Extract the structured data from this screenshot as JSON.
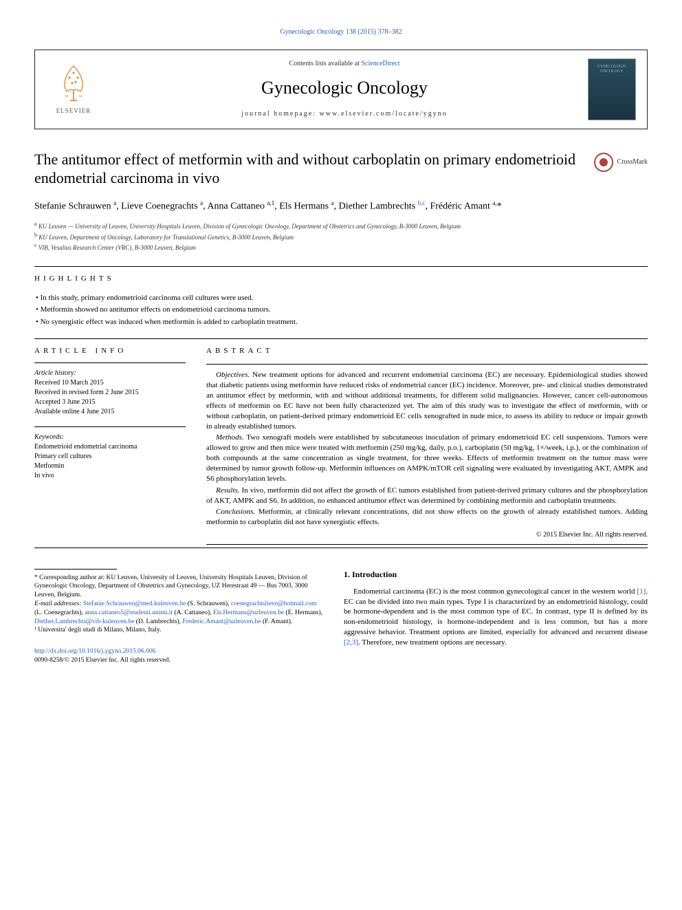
{
  "top_citation": "Gynecologic Oncology 138 (2015) 378–382",
  "header": {
    "contents_prefix": "Contents lists available at ",
    "contents_link": "ScienceDirect",
    "journal_title": "Gynecologic Oncology",
    "homepage_label": "journal homepage: www.elsevier.com/locate/ygyno",
    "publisher_name": "ELSEVIER",
    "cover_line1": "GYNECOLOGIC",
    "cover_line2": "ONCOLOGY"
  },
  "article": {
    "title": "The antitumor effect of metformin with and without carboplatin on primary endometrioid endometrial carcinoma in vivo",
    "crossmark": "CrossMark",
    "authors_html": "Stefanie Schrauwen <sup>a</sup>, Lieve Coenegrachts <sup>a</sup>, Anna Cattaneo <sup>a,1</sup>, Els Hermans <sup>a</sup>, Diether Lambrechts <sup><a>b,c</a></sup>, Frédéric Amant <sup>a,</sup>*",
    "affiliations": [
      {
        "sup": "a",
        "text": "KU Leuven — University of Leuven, University Hospitals Leuven, Division of Gynecologic Oncology, Department of Obstetrics and Gynecology, B-3000 Leuven, Belgium"
      },
      {
        "sup": "b",
        "text": "KU Leuven, Department of Oncology, Laboratory for Translational Genetics, B-3000 Leuven, Belgium"
      },
      {
        "sup": "c",
        "text": "VIB, Vesalius Research Center (VRC), B-3000 Leuven, Belgium"
      }
    ]
  },
  "highlights": {
    "label": "HIGHLIGHTS",
    "items": [
      "In this study, primary endometrioid carcinoma cell cultures were used.",
      "Metformin showed no antitumor effects on endometrioid carcinoma tumors.",
      "No synergistic effect was induced when metformin is added to carboplatin treatment."
    ]
  },
  "article_info": {
    "label": "ARTICLE INFO",
    "history_heading": "Article history:",
    "history": [
      "Received 10 March 2015",
      "Received in revised form 2 June 2015",
      "Accepted 3 June 2015",
      "Available online 4 June 2015"
    ],
    "keywords_heading": "Keywords:",
    "keywords": [
      "Endometrioid endometrial carcinoma",
      "Primary cell cultures",
      "Metformin",
      "In vivo"
    ]
  },
  "abstract": {
    "label": "ABSTRACT",
    "paragraphs": [
      {
        "heading": "Objectives.",
        "text": "New treatment options for advanced and recurrent endometrial carcinoma (EC) are necessary. Epidemiological studies showed that diabetic patients using metformin have reduced risks of endometrial cancer (EC) incidence. Moreover, pre- and clinical studies demonstrated an antitumor effect by metformin, with and without additional treatments, for different solid malignancies. However, cancer cell-autonomous effects of metformin on EC have not been fully characterized yet. The aim of this study was to investigate the effect of metformin, with or without carboplatin, on patient-derived primary endometrioid EC cells xenografted in nude mice, to assess its ability to reduce or impair growth in already established tumors."
      },
      {
        "heading": "Methods.",
        "text": "Two xenograft models were established by subcutaneous inoculation of primary endometrioid EC cell suspensions. Tumors were allowed to grow and then mice were treated with metformin (250 mg/kg, daily, p.o.), carboplatin (50 mg/kg, 1×/week, i.p.), or the combination of both compounds at the same concentration as single treatment, for three weeks. Effects of metformin treatment on the tumor mass were determined by tumor growth follow-up. Metformin influences on AMPK/mTOR cell signaling were evaluated by investigating AKT, AMPK and S6 phosphorylation levels."
      },
      {
        "heading": "Results.",
        "text": "In vivo, metformin did not affect the growth of EC tumors established from patient-derived primary cultures and the phosphorylation of AKT, AMPK and S6. In addition, no enhanced antitumor effect was determined by combining metformin and carboplatin treatments."
      },
      {
        "heading": "Conclusions.",
        "text": "Metformin, at clinically relevant concentrations, did not show effects on the growth of already established tumors. Adding metformin to carboplatin did not have synergistic effects."
      }
    ],
    "copyright": "© 2015 Elsevier Inc. All rights reserved."
  },
  "introduction": {
    "heading": "1. Introduction",
    "text_pre": "Endometrial carcinoma (EC) is the most common gynecological cancer in the western world ",
    "ref1": "[1]",
    "text_mid": ". EC can be divided into two main types. Type I is characterized by an endometrioid histology, could be hormone-dependent and is the most common type of EC. In contrast, type II is defined by its non-endometrioid histology, is hormone-independent and is less common, but has a more aggressive behavior. Treatment options are limited, especially for advanced and recurrent disease ",
    "ref2": "[2,3]",
    "text_post": ". Therefore, new treatment options are necessary."
  },
  "footnotes": {
    "corresponding": "* Corresponding author at: KU Leuven, University of Leuven, University Hospitals Leuven, Division of Gynecologic Oncology, Department of Obstetrics and Gynecology, UZ Herestraat 49 — Bus 7003, 3000 Leuven, Belgium.",
    "emails_label": "E-mail addresses: ",
    "emails": [
      {
        "addr": "Stefanie.Schrauwen@med.kuleuven.be",
        "who": " (S. Schrauwen), "
      },
      {
        "addr": "coenegrachtslieve@hotmail.com",
        "who": " (L. Coenegrachts), "
      },
      {
        "addr": "anna.cattaneo5@studenti.unimi.it",
        "who": " (A. Cattaneo), "
      },
      {
        "addr": "Els.Hermans@uzleuven.be",
        "who": " (E. Hermans), "
      },
      {
        "addr": "Diether.Lambrechts@vib-kuleuven.be",
        "who": " (D. Lambrechts), "
      },
      {
        "addr": "Frederic.Amant@uzleuven.be",
        "who": " (F. Amant)."
      }
    ],
    "note1": "¹ Universita' degli studi di Milano, Milano, Italy."
  },
  "doi": {
    "url": "http://dx.doi.org/10.1016/j.ygyno.2015.06.006",
    "issn_copyright": "0090-8258/© 2015 Elsevier Inc. All rights reserved."
  },
  "colors": {
    "link": "#2a5db0",
    "elsevier_orange": "#e67817",
    "crossmark_red": "#b0413e",
    "cover_bg_top": "#2a4d5e",
    "cover_bg_bottom": "#1a3340",
    "cover_text": "#8fb8c8"
  }
}
